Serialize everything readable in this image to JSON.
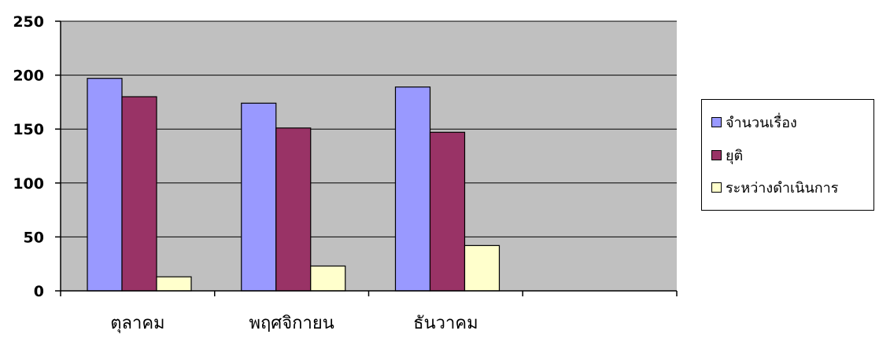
{
  "chart_data": {
    "type": "bar",
    "categories": [
      "ตุลาคม",
      "พฤศจิกายน",
      "ธันวาคม",
      ""
    ],
    "series": [
      {
        "name": "จำนวนเรื่อง",
        "color": "#9999FF",
        "values": [
          197,
          174,
          189,
          null
        ]
      },
      {
        "name": "ยุติ",
        "color": "#993366",
        "values": [
          180,
          151,
          147,
          null
        ]
      },
      {
        "name": "ระหว่างดำเนินการ",
        "color": "#FFFFCC",
        "values": [
          13,
          23,
          42,
          null
        ]
      }
    ],
    "ylim": [
      0,
      250
    ],
    "yticks": [
      0,
      50,
      100,
      150,
      200,
      250
    ],
    "plot_background": "#C0C0C0",
    "grid": true,
    "legend_position": "right"
  }
}
